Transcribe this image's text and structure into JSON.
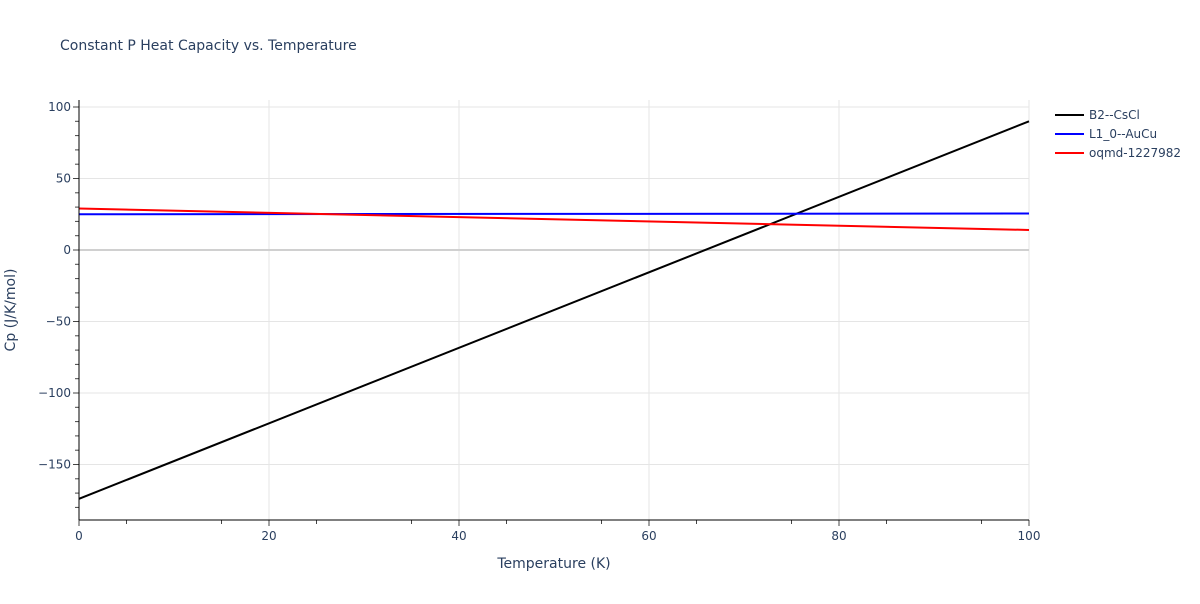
{
  "chart_data": {
    "type": "line",
    "title": "Constant P Heat Capacity vs. Temperature",
    "xlabel": "Temperature (K)",
    "ylabel": "Cp (J/K/mol)",
    "xlim": [
      0,
      100
    ],
    "ylim": [
      -189,
      104
    ],
    "x_ticks": [
      0,
      20,
      40,
      60,
      80,
      100
    ],
    "y_ticks": [
      -150,
      -100,
      -50,
      0,
      50,
      100
    ],
    "y_tick_labels": [
      "−150",
      "−100",
      "−50",
      "0",
      "50",
      "100"
    ],
    "grid": true,
    "legend_position": "right",
    "series": [
      {
        "name": "B2--CsCl",
        "color": "#000000",
        "x": [
          0,
          100
        ],
        "values": [
          -174,
          90
        ]
      },
      {
        "name": "L1_0--AuCu",
        "color": "#0000ff",
        "x": [
          0,
          100
        ],
        "values": [
          25,
          25.5
        ]
      },
      {
        "name": "oqmd-1227982",
        "color": "#ff0000",
        "x": [
          0,
          100
        ],
        "values": [
          29,
          14
        ]
      }
    ]
  }
}
